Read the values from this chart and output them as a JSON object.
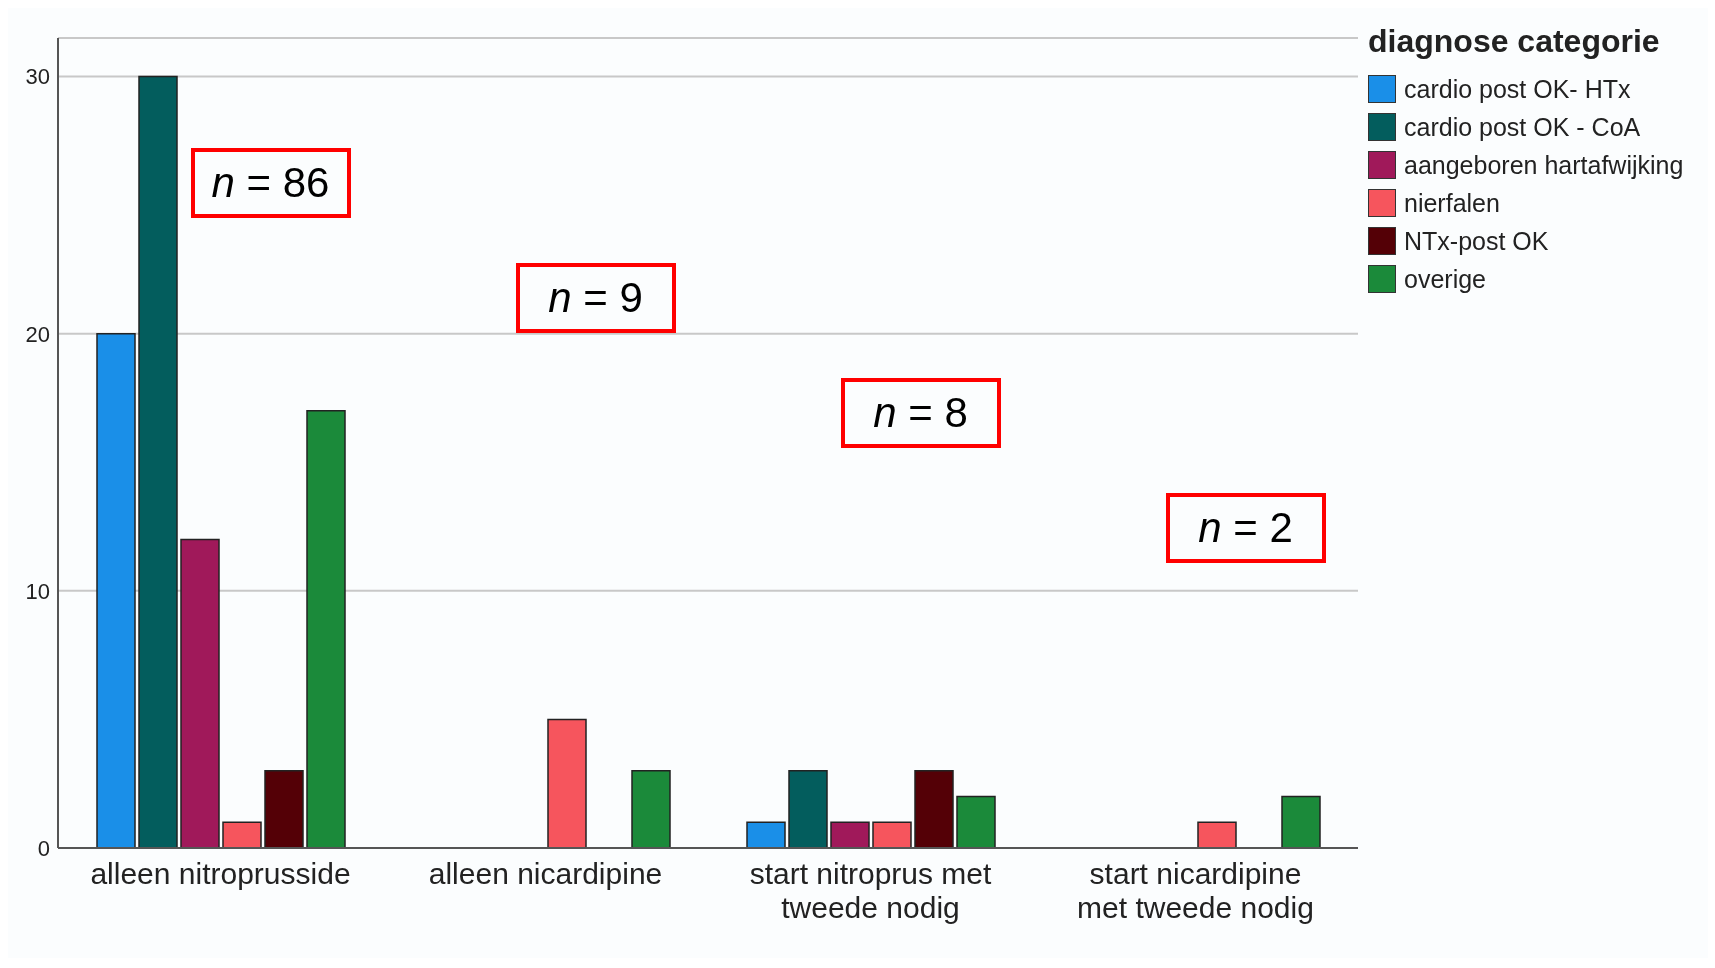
{
  "chart_data": {
    "type": "bar",
    "categories": [
      "alleen nitroprusside",
      "alleen nicardipine",
      "start nitroprus met tweede nodig",
      "start nicardipine met tweede nodig"
    ],
    "series": [
      {
        "name": "cardio post OK- HTx",
        "color": "#1a8fe8",
        "values": [
          20,
          null,
          1,
          null
        ]
      },
      {
        "name": "cardio post OK - CoA",
        "color": "#035d5d",
        "values": [
          30,
          null,
          3,
          null
        ]
      },
      {
        "name": "aangeboren hartafwijking",
        "color": "#a0195a",
        "values": [
          12,
          null,
          1,
          null
        ]
      },
      {
        "name": "nierfalen",
        "color": "#f6555d",
        "values": [
          1,
          5,
          1,
          1
        ]
      },
      {
        "name": "NTx-post OK",
        "color": "#540006",
        "values": [
          3,
          null,
          3,
          null
        ]
      },
      {
        "name": "overige",
        "color": "#1b8a3a",
        "values": [
          17,
          3,
          2,
          2
        ]
      }
    ],
    "legend_title": "diagnose categorie",
    "legend": "top right",
    "ylim": [
      0,
      31.5
    ],
    "yticks": [
      0,
      10,
      20,
      30
    ],
    "grid": "y",
    "annotations": [
      "n = 86",
      "n = 9",
      "n = 8",
      "n = 2"
    ]
  }
}
